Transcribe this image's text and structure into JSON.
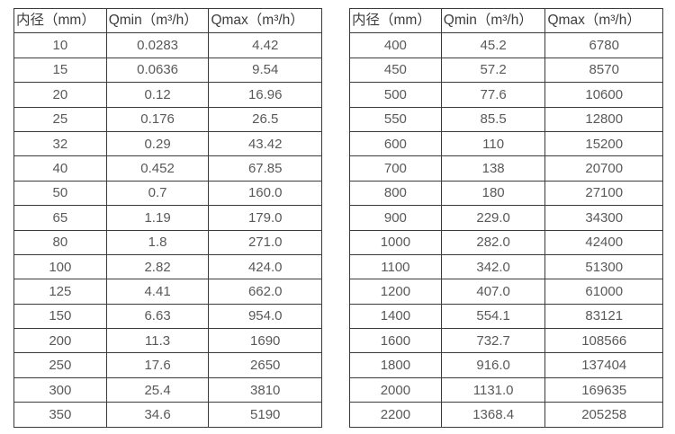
{
  "tables": [
    {
      "name": "flow-rate-table-small-diameters",
      "headers": [
        "内径（mm）",
        "Qmin（m³/h）",
        "Qmax（m³/h）"
      ],
      "rows": [
        [
          "10",
          "0.0283",
          "4.42"
        ],
        [
          "15",
          "0.0636",
          "9.54"
        ],
        [
          "20",
          "0.12",
          "16.96"
        ],
        [
          "25",
          "0.176",
          "26.5"
        ],
        [
          "32",
          "0.29",
          "43.42"
        ],
        [
          "40",
          "0.452",
          "67.85"
        ],
        [
          "50",
          "0.7",
          "160.0"
        ],
        [
          "65",
          "1.19",
          "179.0"
        ],
        [
          "80",
          "1.8",
          "271.0"
        ],
        [
          "100",
          "2.82",
          "424.0"
        ],
        [
          "125",
          "4.41",
          "662.0"
        ],
        [
          "150",
          "6.63",
          "954.0"
        ],
        [
          "200",
          "11.3",
          "1690"
        ],
        [
          "250",
          "17.6",
          "2650"
        ],
        [
          "300",
          "25.4",
          "3810"
        ],
        [
          "350",
          "34.6",
          "5190"
        ]
      ]
    },
    {
      "name": "flow-rate-table-large-diameters",
      "headers": [
        "内径（mm）",
        "Qmin（m³/h）",
        "Qmax（m³/h）"
      ],
      "rows": [
        [
          "400",
          "45.2",
          "6780"
        ],
        [
          "450",
          "57.2",
          "8570"
        ],
        [
          "500",
          "77.6",
          "10600"
        ],
        [
          "550",
          "85.5",
          "12800"
        ],
        [
          "600",
          "110",
          "15200"
        ],
        [
          "700",
          "138",
          "20700"
        ],
        [
          "800",
          "180",
          "27100"
        ],
        [
          "900",
          "229.0",
          "34300"
        ],
        [
          "1000",
          "282.0",
          "42400"
        ],
        [
          "1100",
          "342.0",
          "51300"
        ],
        [
          "1200",
          "407.0",
          "61000"
        ],
        [
          "1400",
          "554.1",
          "83121"
        ],
        [
          "1600",
          "732.7",
          "108566"
        ],
        [
          "1800",
          "916.0",
          "137404"
        ],
        [
          "2000",
          "1131.0",
          "169635"
        ],
        [
          "2200",
          "1368.4",
          "205258"
        ]
      ]
    }
  ],
  "colors": {
    "border": "#3b3b3b",
    "header_text": "#3d3d3d",
    "cell_text": "#595959",
    "background": "#ffffff"
  }
}
